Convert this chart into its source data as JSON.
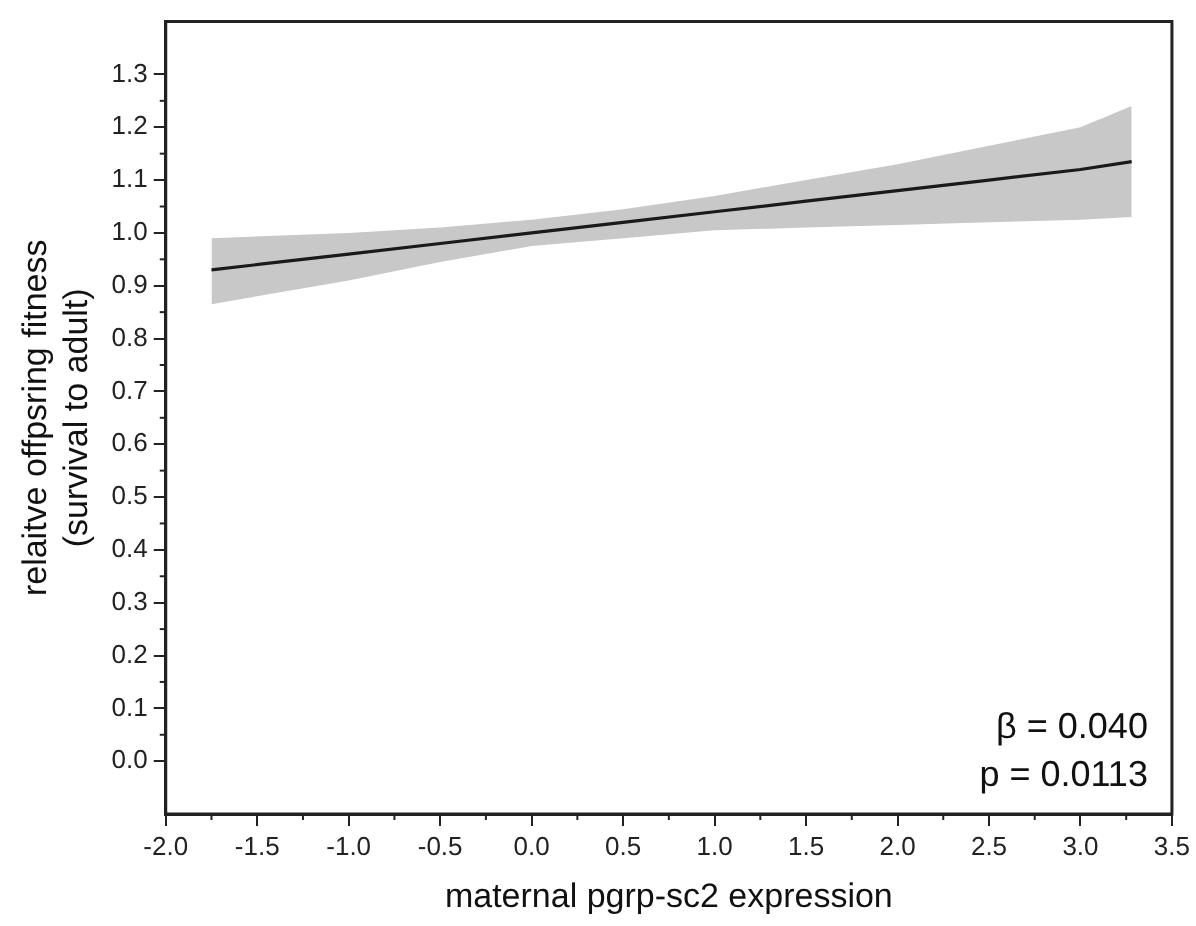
{
  "chart_data": {
    "type": "line",
    "xlabel": "maternal pgrp-sc2 expression",
    "ylabel": "relaitve offpsring fitness\n(survival to adult)",
    "annotations": [
      "β = 0.040",
      "p = 0.0113"
    ],
    "xlim": [
      -2.0,
      3.5
    ],
    "xticks": [
      {
        "value": -2,
        "label": "-2.0"
      },
      {
        "value": -1.5,
        "label": "-1.5"
      },
      {
        "value": -1,
        "label": "-1.0"
      },
      {
        "value": -0.5,
        "label": "-0.5"
      },
      {
        "value": 0,
        "label": "0.0"
      },
      {
        "value": 0.5,
        "label": "0.5"
      },
      {
        "value": 1,
        "label": "1.0"
      },
      {
        "value": 1.5,
        "label": "1.5"
      },
      {
        "value": 2,
        "label": "2.0"
      },
      {
        "value": 2.5,
        "label": "2.5"
      },
      {
        "value": 3,
        "label": "3.0"
      },
      {
        "value": 3.5,
        "label": "3.5"
      }
    ],
    "ylim": [
      -0.1,
      1.4
    ],
    "yticks": [
      {
        "value": 0,
        "label": "0.0"
      },
      {
        "value": 0.1,
        "label": "0.1"
      },
      {
        "value": 0.2,
        "label": "0.2"
      },
      {
        "value": 0.3,
        "label": "0.3"
      },
      {
        "value": 0.4,
        "label": "0.4"
      },
      {
        "value": 0.5,
        "label": "0.5"
      },
      {
        "value": 0.6,
        "label": "0.6"
      },
      {
        "value": 0.7,
        "label": "0.7"
      },
      {
        "value": 0.8,
        "label": "0.8"
      },
      {
        "value": 0.9,
        "label": "0.9"
      },
      {
        "value": 1,
        "label": "1.0"
      },
      {
        "value": 1.1,
        "label": "1.1"
      },
      {
        "value": 1.2,
        "label": "1.2"
      },
      {
        "value": 1.3,
        "label": "1.3"
      }
    ],
    "grid": false,
    "legend": false,
    "marker": "none",
    "line_style": "solid",
    "series": [
      {
        "color": "#1a1a1a",
        "x": [
          -1.75,
          -1,
          -0.5,
          0,
          0.5,
          1,
          1.5,
          2,
          2.5,
          3,
          3.28
        ],
        "values": [
          0.93,
          0.96,
          0.98,
          1.0,
          1.02,
          1.04,
          1.06,
          1.08,
          1.1,
          1.12,
          1.135
        ],
        "lower": [
          0.865,
          0.91,
          0.945,
          0.975,
          0.99,
          1.005,
          1.01,
          1.015,
          1.02,
          1.025,
          1.03
        ],
        "upper": [
          0.99,
          1.0,
          1.01,
          1.025,
          1.045,
          1.07,
          1.1,
          1.13,
          1.165,
          1.2,
          1.24
        ]
      }
    ]
  }
}
